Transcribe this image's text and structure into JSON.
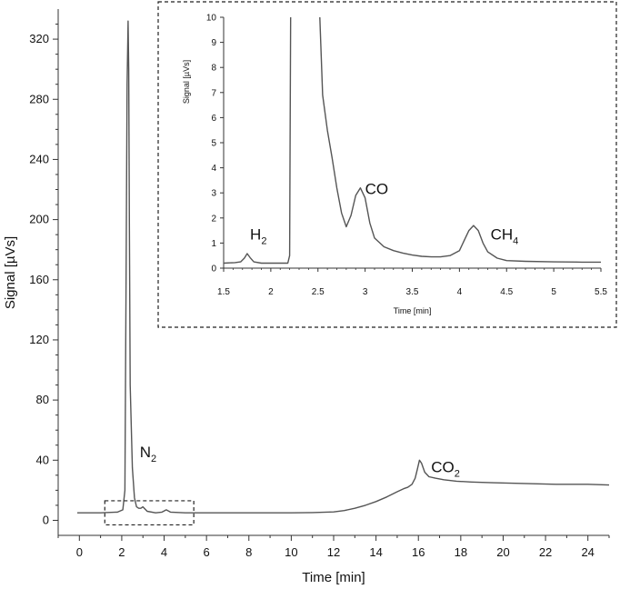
{
  "chart_data": [
    {
      "type": "line",
      "panel": "main",
      "xlabel": "Time [min]",
      "ylabel": "Signal [µVs]",
      "xlim": [
        -1,
        25
      ],
      "ylim": [
        -10,
        340
      ],
      "xticks": [
        0,
        2,
        4,
        6,
        8,
        10,
        12,
        14,
        16,
        18,
        20,
        22,
        24
      ],
      "yticks": [
        0,
        40,
        80,
        120,
        160,
        200,
        240,
        280,
        320
      ],
      "grid": false,
      "series": [
        {
          "x": [
            -0.1,
            1.0,
            1.8,
            2.05,
            2.15,
            2.2,
            2.25,
            2.3,
            2.33,
            2.36,
            2.4,
            2.5,
            2.6,
            2.7,
            2.8,
            2.9,
            3.0,
            3.2,
            3.6,
            3.9,
            4.1,
            4.3,
            5.0,
            6.0,
            8.0,
            10.0,
            11.0,
            12.0,
            12.5,
            13.0,
            13.5,
            14.0,
            14.5,
            15.0,
            15.3,
            15.5,
            15.7,
            15.85,
            15.95,
            16.05,
            16.15,
            16.3,
            16.5,
            16.8,
            17.2,
            17.8,
            18.5,
            19.5,
            21.0,
            22.5,
            24.0,
            25.0
          ],
          "y": [
            5,
            5,
            5.5,
            7,
            20,
            150,
            290,
            332,
            300,
            200,
            90,
            35,
            15,
            9,
            8,
            8,
            9,
            6,
            5,
            5.5,
            7,
            5.5,
            5,
            5,
            5,
            5,
            5.2,
            5.6,
            6.5,
            8,
            10,
            12.5,
            15.5,
            19,
            21,
            22,
            24,
            28,
            34,
            40,
            38,
            32,
            29,
            28,
            27,
            26,
            25.5,
            25,
            24.5,
            24,
            24,
            23.5
          ]
        }
      ],
      "annotations": [
        {
          "text": "N",
          "subscript": "2",
          "x": 2.85,
          "y": 42
        },
        {
          "text": "CO",
          "subscript": "2",
          "x": 16.6,
          "y": 32
        }
      ],
      "zoom_box": {
        "x": [
          1.2,
          5.4
        ],
        "y": [
          -3,
          13
        ]
      }
    },
    {
      "type": "line",
      "panel": "inset",
      "xlabel": "Time [min]",
      "ylabel": "Signal [µVs]",
      "xlim": [
        1.5,
        5.5
      ],
      "ylim": [
        0,
        10
      ],
      "xticks": [
        1.5,
        2,
        2.5,
        3,
        3.5,
        4,
        4.5,
        5,
        5.5
      ],
      "xticklabels": [
        "1.5",
        "2",
        "2.5",
        "3",
        "3.5",
        "4",
        "4.5",
        "5",
        "5.5"
      ],
      "yticks": [
        0,
        1,
        2,
        3,
        4,
        5,
        6,
        7,
        8,
        9,
        10
      ],
      "grid": false,
      "series": [
        {
          "x": [
            1.5,
            1.62,
            1.68,
            1.72,
            1.75,
            1.78,
            1.82,
            1.9,
            2.0,
            2.1,
            2.18,
            2.2,
            2.205,
            2.21
          ],
          "y": [
            0.2,
            0.22,
            0.25,
            0.4,
            0.58,
            0.42,
            0.25,
            0.2,
            0.2,
            0.2,
            0.2,
            0.5,
            5.0,
            10.0
          ]
        },
        {
          "x": [
            2.52,
            2.55,
            2.6,
            2.65,
            2.7,
            2.75,
            2.8,
            2.85,
            2.9,
            2.95,
            3.0,
            3.05,
            3.1,
            3.2,
            3.3,
            3.4,
            3.5,
            3.6,
            3.7,
            3.8,
            3.9,
            4.0,
            4.05,
            4.1,
            4.15,
            4.2,
            4.25,
            4.3,
            4.4,
            4.5,
            4.7,
            5.0,
            5.3,
            5.5
          ],
          "y": [
            10.0,
            6.9,
            5.5,
            4.4,
            3.2,
            2.2,
            1.65,
            2.1,
            2.9,
            3.2,
            2.8,
            1.8,
            1.2,
            0.85,
            0.7,
            0.6,
            0.52,
            0.47,
            0.45,
            0.45,
            0.5,
            0.7,
            1.1,
            1.5,
            1.7,
            1.5,
            1.0,
            0.65,
            0.4,
            0.3,
            0.27,
            0.25,
            0.24,
            0.24
          ]
        }
      ],
      "annotations": [
        {
          "text": "H",
          "subscript": "2",
          "x": 1.78,
          "y": 1.15
        },
        {
          "text": "CO",
          "subscript": "",
          "x": 3.0,
          "y": 2.95
        },
        {
          "text": "CH",
          "subscript": "4",
          "x": 4.33,
          "y": 1.15
        }
      ]
    }
  ]
}
